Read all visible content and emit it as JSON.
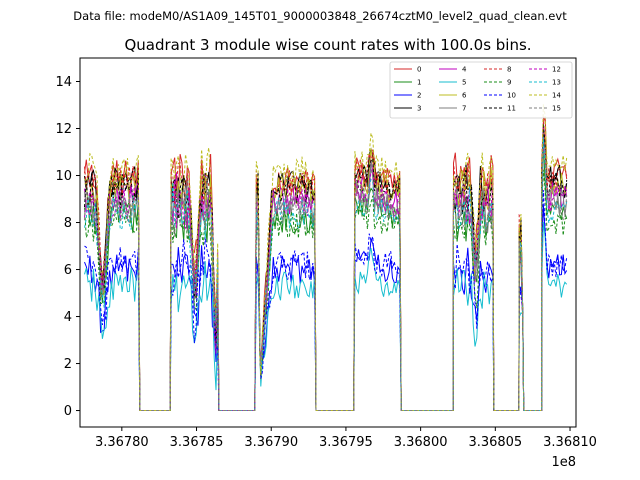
{
  "header": {
    "file_text": "Data file: modeM0/AS1A09_145T01_9000003848_26674cztM0_level2_quad_clean.evt"
  },
  "chart_data": {
    "type": "line",
    "title": "Quadrant 3 module wise count rates with 100.0s bins.",
    "xlabel": "",
    "ylabel": "",
    "x_offset_label": "1e8",
    "xlim": [
      3.367772,
      3.368104
    ],
    "ylim": [
      -0.7,
      15
    ],
    "x_ticks": [
      {
        "value": 3.3678,
        "label": "3.36780"
      },
      {
        "value": 3.36785,
        "label": "3.36785"
      },
      {
        "value": 3.3679,
        "label": "3.36790"
      },
      {
        "value": 3.36795,
        "label": "3.36795"
      },
      {
        "value": 3.368,
        "label": "3.36800"
      },
      {
        "value": 3.36805,
        "label": "3.36805"
      },
      {
        "value": 3.3681,
        "label": "3.36810"
      }
    ],
    "y_ticks": [
      {
        "value": 0,
        "label": "0"
      },
      {
        "value": 2,
        "label": "2"
      },
      {
        "value": 4,
        "label": "4"
      },
      {
        "value": 6,
        "label": "6"
      },
      {
        "value": 8,
        "label": "8"
      },
      {
        "value": 10,
        "label": "10"
      },
      {
        "value": 12,
        "label": "12"
      },
      {
        "value": 14,
        "label": "14"
      }
    ],
    "legend_position": "top-right",
    "x_range_data": [
      3.367775,
      3.368098
    ],
    "segments": [
      {
        "x0": 3.367775,
        "x1": 3.367812,
        "profile": "active-a"
      },
      {
        "x0": 3.367812,
        "x1": 3.367833,
        "profile": "zero"
      },
      {
        "x0": 3.367833,
        "x1": 3.367865,
        "profile": "active-b"
      },
      {
        "x0": 3.367865,
        "x1": 3.36789,
        "profile": "zero"
      },
      {
        "x0": 3.36789,
        "x1": 3.367893,
        "profile": "spike"
      },
      {
        "x0": 3.367893,
        "x1": 3.36793,
        "profile": "active-c"
      },
      {
        "x0": 3.36793,
        "x1": 3.367956,
        "profile": "zero"
      },
      {
        "x0": 3.367956,
        "x1": 3.367987,
        "profile": "active-d"
      },
      {
        "x0": 3.367987,
        "x1": 3.368022,
        "profile": "zero"
      },
      {
        "x0": 3.368022,
        "x1": 3.368049,
        "profile": "active-e"
      },
      {
        "x0": 3.368049,
        "x1": 3.368066,
        "profile": "zero"
      },
      {
        "x0": 3.368066,
        "x1": 3.368069,
        "profile": "spike2"
      },
      {
        "x0": 3.368069,
        "x1": 3.368081,
        "profile": "zero"
      },
      {
        "x0": 3.368081,
        "x1": 3.368098,
        "profile": "active-f"
      }
    ],
    "series": [
      {
        "name": "0",
        "color": "#d62728",
        "dash": "solid",
        "level": 9.9
      },
      {
        "name": "1",
        "color": "#1a8c1a",
        "dash": "solid",
        "level": 8.2
      },
      {
        "name": "2",
        "color": "#0000ff",
        "dash": "solid",
        "level": 6.0
      },
      {
        "name": "3",
        "color": "#000000",
        "dash": "solid",
        "level": 9.6
      },
      {
        "name": "4",
        "color": "#bf00bf",
        "dash": "solid",
        "level": 9.0
      },
      {
        "name": "5",
        "color": "#17becf",
        "dash": "solid",
        "level": 5.3
      },
      {
        "name": "6",
        "color": "#bcbd22",
        "dash": "solid",
        "level": 9.3
      },
      {
        "name": "7",
        "color": "#7f7f7f",
        "dash": "solid",
        "level": 8.7
      },
      {
        "name": "8",
        "color": "#d62728",
        "dash": "dashed",
        "level": 9.7
      },
      {
        "name": "9",
        "color": "#1a8c1a",
        "dash": "dashed",
        "level": 7.9
      },
      {
        "name": "10",
        "color": "#0000ff",
        "dash": "dashed",
        "level": 6.2
      },
      {
        "name": "11",
        "color": "#000000",
        "dash": "dashed",
        "level": 9.4
      },
      {
        "name": "12",
        "color": "#bf00bf",
        "dash": "dashed",
        "level": 8.9
      },
      {
        "name": "13",
        "color": "#17becf",
        "dash": "dashed",
        "level": 8.4
      },
      {
        "name": "14",
        "color": "#bcbd22",
        "dash": "dashed",
        "level": 10.2
      },
      {
        "name": "15",
        "color": "#7f7f7f",
        "dash": "dashed",
        "level": 8.6
      }
    ]
  }
}
